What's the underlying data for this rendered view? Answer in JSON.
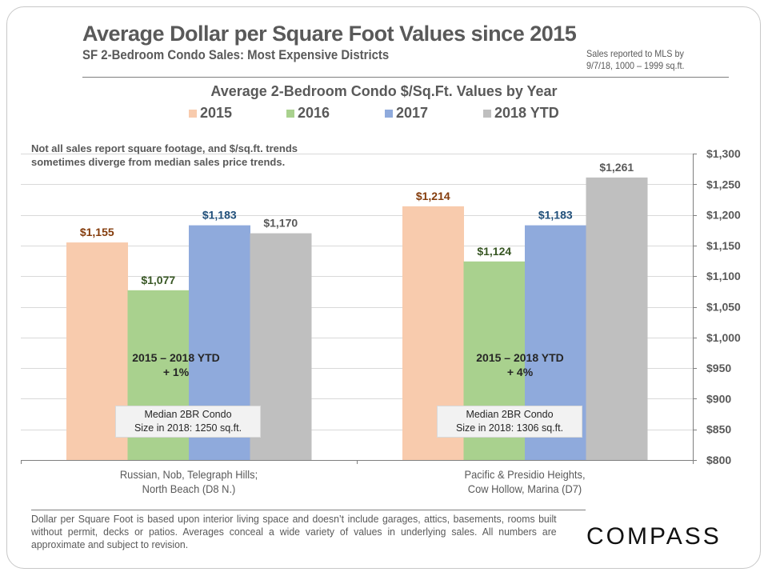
{
  "header": {
    "title": "Average Dollar per Square Foot Values since 2015",
    "subtitle": "SF 2-Bedroom  Condo Sales: Most Expensive Districts",
    "note_line1": "Sales reported to MLS by",
    "note_line2": "9/7/18, 1000 – 1999 sq.ft."
  },
  "caveat": {
    "line1": "Not all sales report square footage, and $/sq.ft. trends",
    "line2": "sometimes diverge from median sales price trends."
  },
  "annotations": [
    {
      "change_line1": "2015 – 2018 YTD",
      "change_line2": "+ 1%",
      "box_line1": "Median 2BR Condo",
      "box_line2": "Size in 2018: 1250 sq.ft."
    },
    {
      "change_line1": "2015 – 2018 YTD",
      "change_line2": "+ 4%",
      "box_line1": "Median 2BR Condo",
      "box_line2": "Size in 2018: 1306 sq.ft."
    }
  ],
  "footnote": "Dollar per Square Foot is based upon interior living space and doesn’t include garages, attics, basements, rooms built without permit, decks or patios. Averages conceal a wide variety of values in underlying sales. All numbers are approximate and subject to revision.",
  "logo": "COMPASS",
  "colors": {
    "2015": "#f8cbad",
    "2016": "#a9d18e",
    "2017": "#8faadc",
    "2018 YTD": "#bfbfbf",
    "label_2015": "#843c0c",
    "label_2016": "#375623",
    "label_2017": "#1f4e79",
    "label_2018": "#595959",
    "text": "#595959",
    "grid": "#d9d9d9"
  },
  "chart_data": {
    "type": "bar",
    "title": "Average 2-Bedroom Condo $/Sq.Ft. Values by Year",
    "categories": [
      {
        "line1": "Russian, Nob, Telegraph Hills;",
        "line2": "North Beach (D8 N.)"
      },
      {
        "line1": "Pacific & Presidio Heights,",
        "line2": "Cow Hollow, Marina (D7)"
      }
    ],
    "series": [
      {
        "name": "2015",
        "values": [
          1155,
          1214
        ],
        "labels": [
          "$1,155",
          "$1,214"
        ]
      },
      {
        "name": "2016",
        "values": [
          1077,
          1124
        ],
        "labels": [
          "$1,077",
          "$1,124"
        ]
      },
      {
        "name": "2017",
        "values": [
          1183,
          1183
        ],
        "labels": [
          "$1,183",
          "$1,183"
        ]
      },
      {
        "name": "2018 YTD",
        "values": [
          1170,
          1261
        ],
        "labels": [
          "$1,170",
          "$1,261"
        ]
      }
    ],
    "ylim": [
      800,
      1300
    ],
    "yticks": [
      800,
      850,
      900,
      950,
      1000,
      1050,
      1100,
      1150,
      1200,
      1250,
      1300
    ],
    "ytick_labels": [
      "$800",
      "$850",
      "$900",
      "$950",
      "$1,000",
      "$1,050",
      "$1,100",
      "$1,150",
      "$1,200",
      "$1,250",
      "$1,300"
    ],
    "y_axis_side": "right",
    "xlabel": "",
    "ylabel": "",
    "grid": true,
    "legend": "top-center"
  }
}
